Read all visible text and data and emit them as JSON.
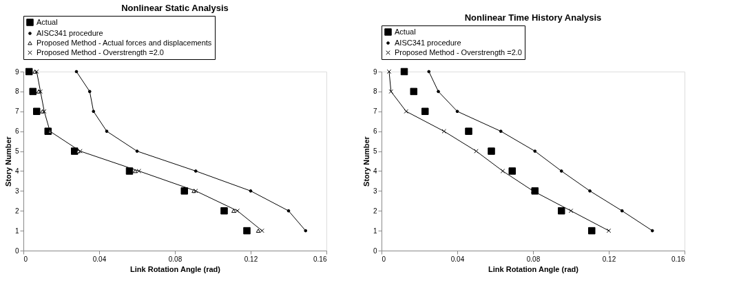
{
  "chart_data": [
    {
      "type": "line",
      "title": "Nonlinear Static Analysis",
      "xlabel": "Link Rotation Angle (rad)",
      "ylabel": "Story Number",
      "xlim": [
        0,
        0.16
      ],
      "xticks": [
        0,
        0.04,
        0.08,
        0.12,
        0.16
      ],
      "ylim": [
        0,
        9
      ],
      "yticks": [
        0,
        1,
        2,
        3,
        4,
        5,
        6,
        7,
        8,
        9
      ],
      "grid": false,
      "legend": "top",
      "series": [
        {
          "name": "Actual",
          "type": "scatter",
          "marker": "square",
          "color": "#000000",
          "x": [
            0.118,
            0.106,
            0.085,
            0.056,
            0.027,
            0.013,
            0.007,
            0.005,
            0.003
          ],
          "values": [
            1,
            2,
            3,
            4,
            5,
            6,
            7,
            8,
            9
          ]
        },
        {
          "name": "AISC341 procedure",
          "type": "line",
          "marker": "circle",
          "line_style": "solid",
          "color": "#000000",
          "x": [
            0.149,
            0.14,
            0.12,
            0.091,
            0.06,
            0.044,
            0.037,
            0.035,
            0.028
          ],
          "values": [
            1,
            2,
            3,
            4,
            5,
            6,
            7,
            8,
            9
          ]
        },
        {
          "name": "Proposed Method - Actual forces and displacements",
          "type": "scatter",
          "marker": "triangle",
          "color": "#000000",
          "x": [
            0.124,
            0.111,
            0.09,
            0.059,
            0.029,
            0.014,
            0.01,
            0.008,
            0.006
          ],
          "values": [
            1,
            2,
            3,
            4,
            5,
            6,
            7,
            8,
            9
          ]
        },
        {
          "name": "Proposed Method - Overstrength =2.0",
          "type": "line",
          "marker": "cross",
          "line_style": "solid",
          "color": "#000000",
          "x": [
            0.126,
            0.113,
            0.091,
            0.061,
            0.03,
            0.014,
            0.011,
            0.009,
            0.007
          ],
          "values": [
            1,
            2,
            3,
            4,
            5,
            6,
            7,
            8,
            9
          ]
        }
      ]
    },
    {
      "type": "line",
      "title": "Nonlinear Time History Analysis",
      "xlabel": "Link Rotation Angle (rad)",
      "ylabel": "Story Number",
      "xlim": [
        0,
        0.16
      ],
      "xticks": [
        0,
        0.04,
        0.08,
        0.12,
        0.16
      ],
      "ylim": [
        0,
        9
      ],
      "yticks": [
        0,
        1,
        2,
        3,
        4,
        5,
        6,
        7,
        8,
        9
      ],
      "grid": false,
      "legend": "top",
      "series": [
        {
          "name": "Actual",
          "type": "scatter",
          "marker": "square",
          "color": "#000000",
          "x": [
            0.111,
            0.095,
            0.081,
            0.069,
            0.058,
            0.046,
            0.023,
            0.017,
            0.012
          ],
          "values": [
            1,
            2,
            3,
            4,
            5,
            6,
            7,
            8,
            9
          ]
        },
        {
          "name": "AISC341 procedure",
          "type": "line",
          "marker": "circle",
          "line_style": "solid",
          "color": "#000000",
          "x": [
            0.143,
            0.127,
            0.11,
            0.095,
            0.081,
            0.063,
            0.04,
            0.03,
            0.025
          ],
          "values": [
            1,
            2,
            3,
            4,
            5,
            6,
            7,
            8,
            9
          ]
        },
        {
          "name": "Proposed Method - Overstrength =2.0",
          "type": "line",
          "marker": "cross",
          "line_style": "solid",
          "color": "#000000",
          "x": [
            0.12,
            0.1,
            0.08,
            0.064,
            0.05,
            0.033,
            0.013,
            0.005,
            0.004
          ],
          "values": [
            1,
            2,
            3,
            4,
            5,
            6,
            7,
            8,
            9
          ]
        }
      ]
    }
  ]
}
